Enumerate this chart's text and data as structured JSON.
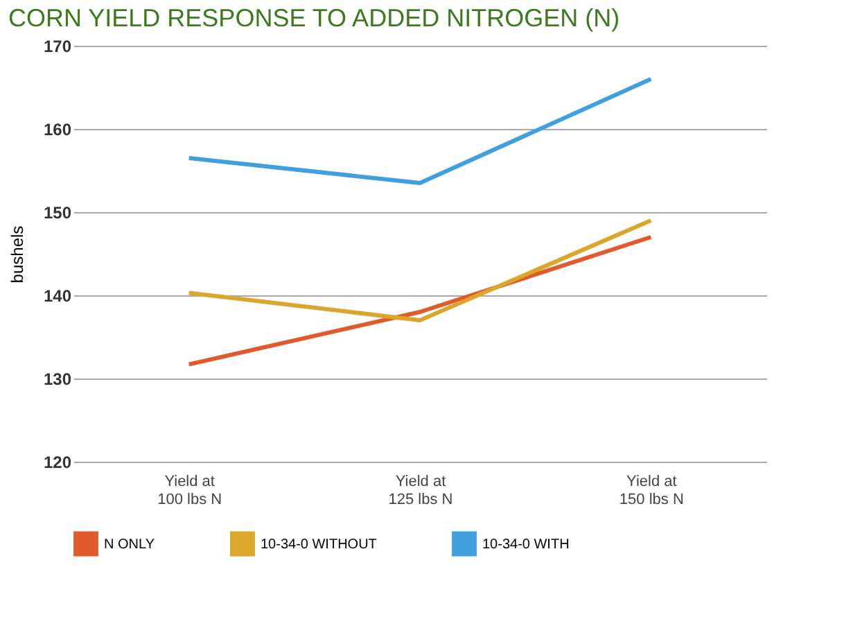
{
  "chart_data": {
    "type": "line",
    "title": "CORN YIELD RESPONSE TO ADDED NITROGEN (N)",
    "ylabel": "bushels",
    "categories": [
      "Yield at\n100 lbs N",
      "Yield at\n125 lbs N",
      "Yield at\n150 lbs N"
    ],
    "series": [
      {
        "name": "N ONLY",
        "color": "#e05a2b",
        "values": [
          131.7,
          138,
          147
        ]
      },
      {
        "name": "10-34-0 WITHOUT",
        "color": "#dba62c",
        "values": [
          140.3,
          137,
          149
        ]
      },
      {
        "name": "10-34-0 WITH",
        "color": "#3f9fdf",
        "values": [
          156.5,
          153.5,
          166
        ]
      }
    ],
    "ylim": [
      120,
      170
    ],
    "yticks": [
      120,
      130,
      140,
      150,
      160,
      170
    ],
    "grid": "y",
    "legend": "bottom",
    "marker": "none",
    "line_style": "solid"
  }
}
